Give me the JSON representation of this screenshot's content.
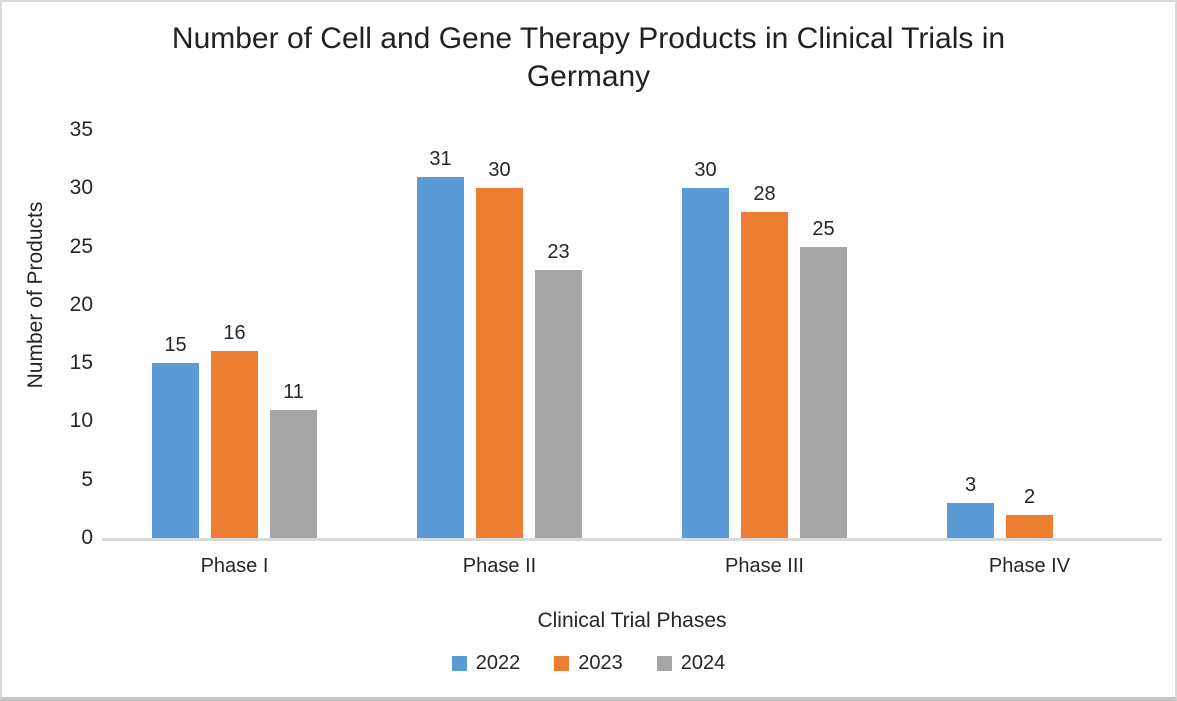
{
  "chart": {
    "title_lines": [
      "Number of Cell and Gene Therapy Products in Clinical Trials in",
      "Germany"
    ]
  },
  "chart_data": {
    "type": "bar",
    "title": "Number of Cell and Gene Therapy Products in Clinical Trials in Germany",
    "xlabel": "Clinical Trial Phases",
    "ylabel": "Number of Products",
    "categories": [
      "Phase I",
      "Phase II",
      "Phase III",
      "Phase IV"
    ],
    "series": [
      {
        "name": "2022",
        "color": "#5B9BD5",
        "values": [
          15,
          31,
          30,
          3
        ]
      },
      {
        "name": "2023",
        "color": "#ED7D31",
        "values": [
          16,
          30,
          28,
          2
        ]
      },
      {
        "name": "2024",
        "color": "#A5A5A5",
        "values": [
          11,
          23,
          25,
          null
        ]
      }
    ],
    "ylim": [
      0,
      35
    ],
    "yticks": [
      0,
      5,
      10,
      15,
      20,
      25,
      30,
      35
    ],
    "grid": false,
    "data_labels": true,
    "legend_position": "bottom",
    "colors": {
      "axis_line": "#D9D9D9",
      "text": "#262626",
      "background": "#FFFFFF"
    }
  }
}
